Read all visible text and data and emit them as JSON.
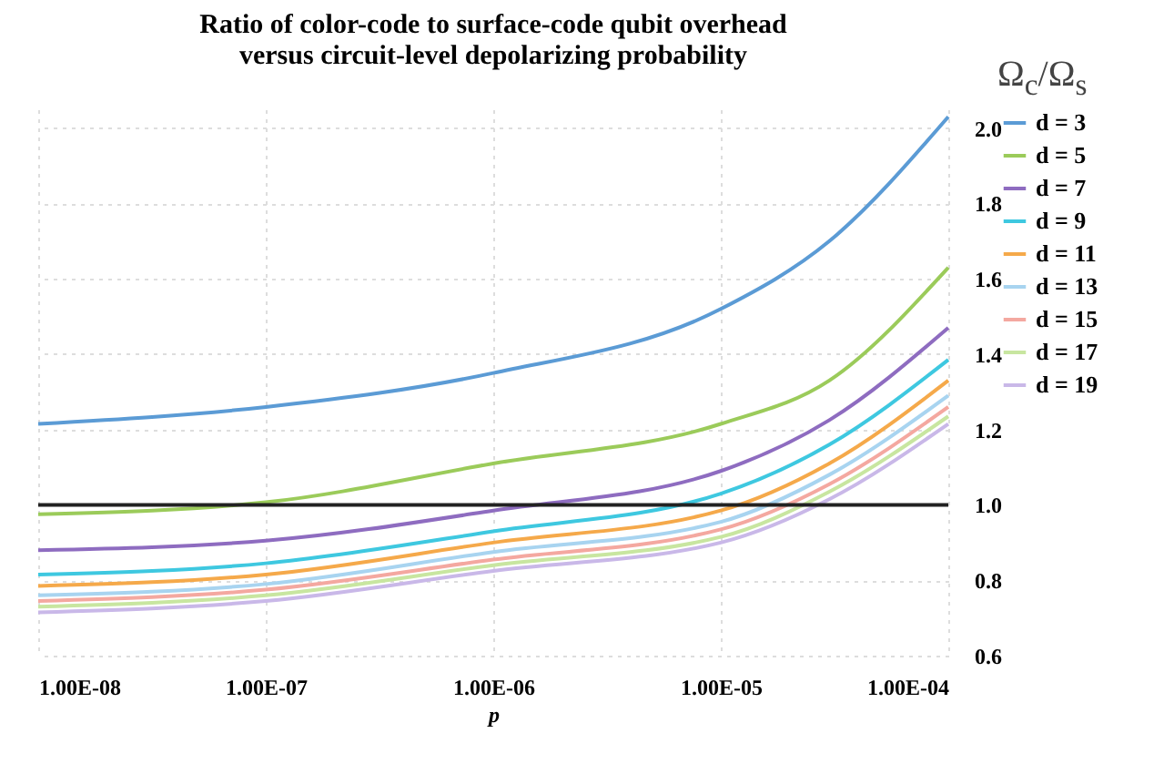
{
  "chart_data": {
    "type": "line",
    "title": "Ratio of color-code to surface-code qubit overhead\nversus circuit-level depolarizing probability",
    "xlabel": "p",
    "ylabel": "Ω$_{c}$/Ω$_{s}$",
    "x": [
      1e-08,
      1e-07,
      1e-06,
      1e-05,
      3e-05,
      0.0001
    ],
    "series": [
      {
        "name": "d = 3",
        "color": "#5b9bd5",
        "values": [
          1.215,
          1.26,
          1.35,
          1.52,
          1.7,
          2.03
        ]
      },
      {
        "name": "d = 5",
        "color": "#9bcb5a",
        "values": [
          0.975,
          1.007,
          1.11,
          1.215,
          1.33,
          1.63
        ]
      },
      {
        "name": "d = 7",
        "color": "#8e6cc0",
        "values": [
          0.88,
          0.905,
          0.985,
          1.09,
          1.225,
          1.47
        ]
      },
      {
        "name": "d = 9",
        "color": "#3ec8e0",
        "values": [
          0.815,
          0.845,
          0.93,
          1.03,
          1.16,
          1.385
        ]
      },
      {
        "name": "d = 11",
        "color": "#f5a94a",
        "values": [
          0.785,
          0.815,
          0.9,
          0.985,
          1.11,
          1.33
        ]
      },
      {
        "name": "d = 13",
        "color": "#a8d4f0",
        "values": [
          0.76,
          0.79,
          0.875,
          0.955,
          1.08,
          1.29
        ]
      },
      {
        "name": "d = 15",
        "color": "#f4a8a0",
        "values": [
          0.745,
          0.775,
          0.855,
          0.935,
          1.055,
          1.26
        ]
      },
      {
        "name": "d = 17",
        "color": "#c8e6a0",
        "values": [
          0.73,
          0.76,
          0.84,
          0.915,
          1.035,
          1.235
        ]
      },
      {
        "name": "d = 19",
        "color": "#c9b8e8",
        "values": [
          0.715,
          0.745,
          0.825,
          0.9,
          1.015,
          1.215
        ]
      }
    ],
    "log": "x",
    "xlim": [
      1e-08,
      0.0001
    ],
    "xticks": [
      {
        "value": 1e-08,
        "label": "1.00E-08"
      },
      {
        "value": 1e-07,
        "label": "1.00E-07"
      },
      {
        "value": 1e-06,
        "label": "1.00E-06"
      },
      {
        "value": 1e-05,
        "label": "1.00E-05"
      },
      {
        "value": 0.0001,
        "label": "1.00E-04"
      }
    ],
    "ylim": [
      0.6,
      2.05
    ],
    "yticks": [
      {
        "value": 0.6,
        "label": "0.6"
      },
      {
        "value": 0.8,
        "label": "0.8"
      },
      {
        "value": 1.0,
        "label": "1.0"
      },
      {
        "value": 1.2,
        "label": "1.2"
      },
      {
        "value": 1.4,
        "label": "1.4"
      },
      {
        "value": 1.6,
        "label": "1.6"
      },
      {
        "value": 1.8,
        "label": "1.8"
      },
      {
        "value": 2.0,
        "label": "2.0"
      }
    ],
    "ref_lines": [
      {
        "axis": "y",
        "value": 1.0,
        "color": "#222222"
      }
    ],
    "grid": true,
    "legend": "right",
    "marker": "none",
    "line_style": "solid"
  }
}
